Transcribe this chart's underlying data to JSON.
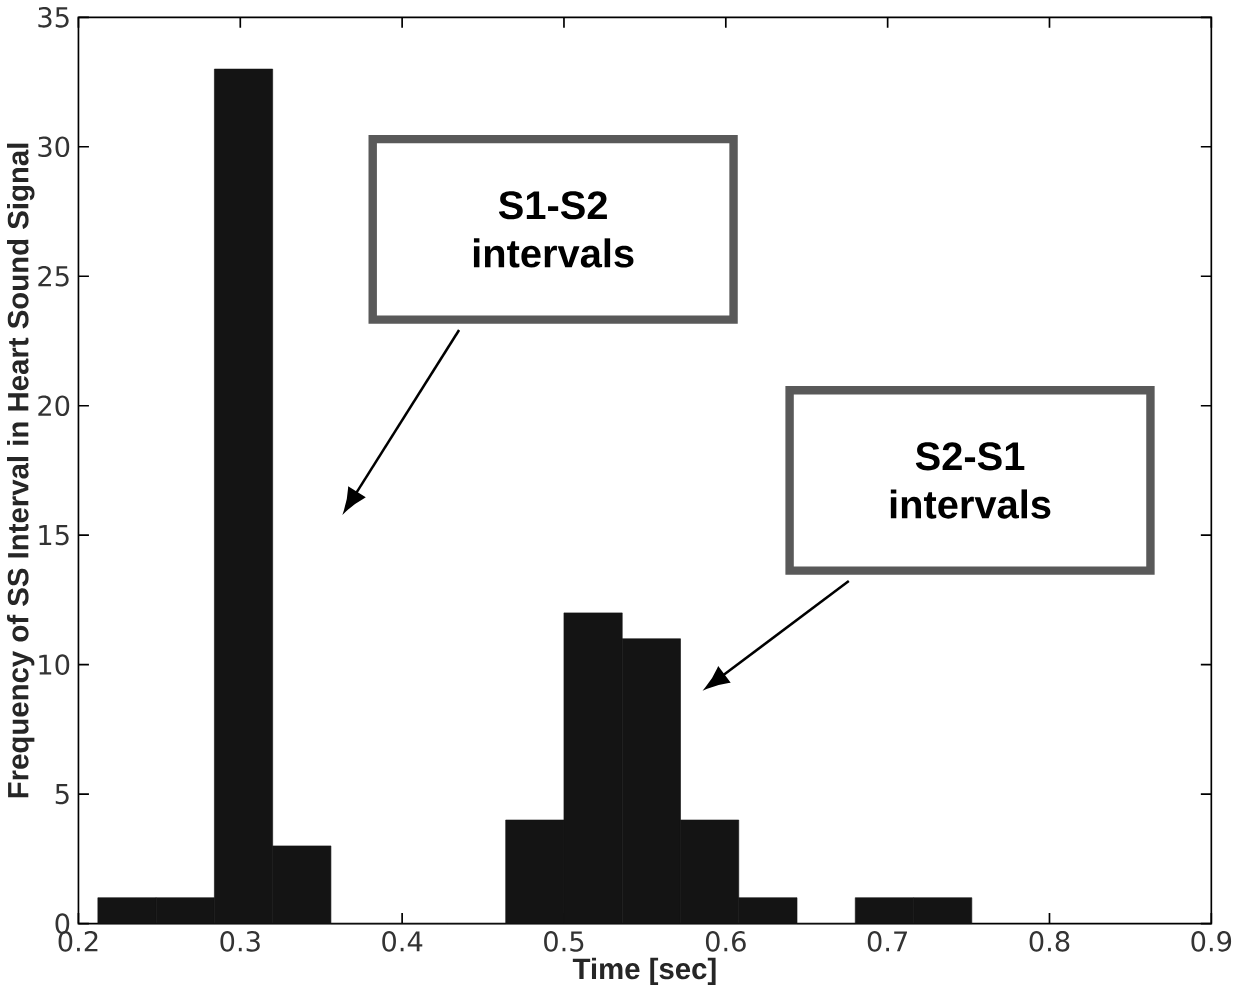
{
  "chart_data": {
    "type": "histogram",
    "xlabel": "Time [sec]",
    "ylabel": "Frequency of SS Interval in Heart Sound Signal",
    "bins": [
      0.212,
      0.248,
      0.284,
      0.32,
      0.356,
      0.392,
      0.428,
      0.464,
      0.5,
      0.536,
      0.572,
      0.608,
      0.644,
      0.68,
      0.716,
      0.752
    ],
    "values": [
      1,
      1,
      33,
      3,
      0,
      0,
      0,
      4,
      12,
      11,
      4,
      1,
      0,
      1,
      1
    ],
    "color": "#141414",
    "xlim": [
      0.2,
      0.9
    ],
    "ylim": [
      0,
      35
    ],
    "xticks": [
      0.2,
      0.3,
      0.4,
      0.5,
      0.6,
      0.7,
      0.8,
      0.9
    ],
    "yticks": [
      0,
      5,
      10,
      15,
      20,
      25,
      30,
      35
    ],
    "grid": false,
    "annotations": [
      "S1-S2 intervals",
      "S2-S1 intervals"
    ]
  }
}
